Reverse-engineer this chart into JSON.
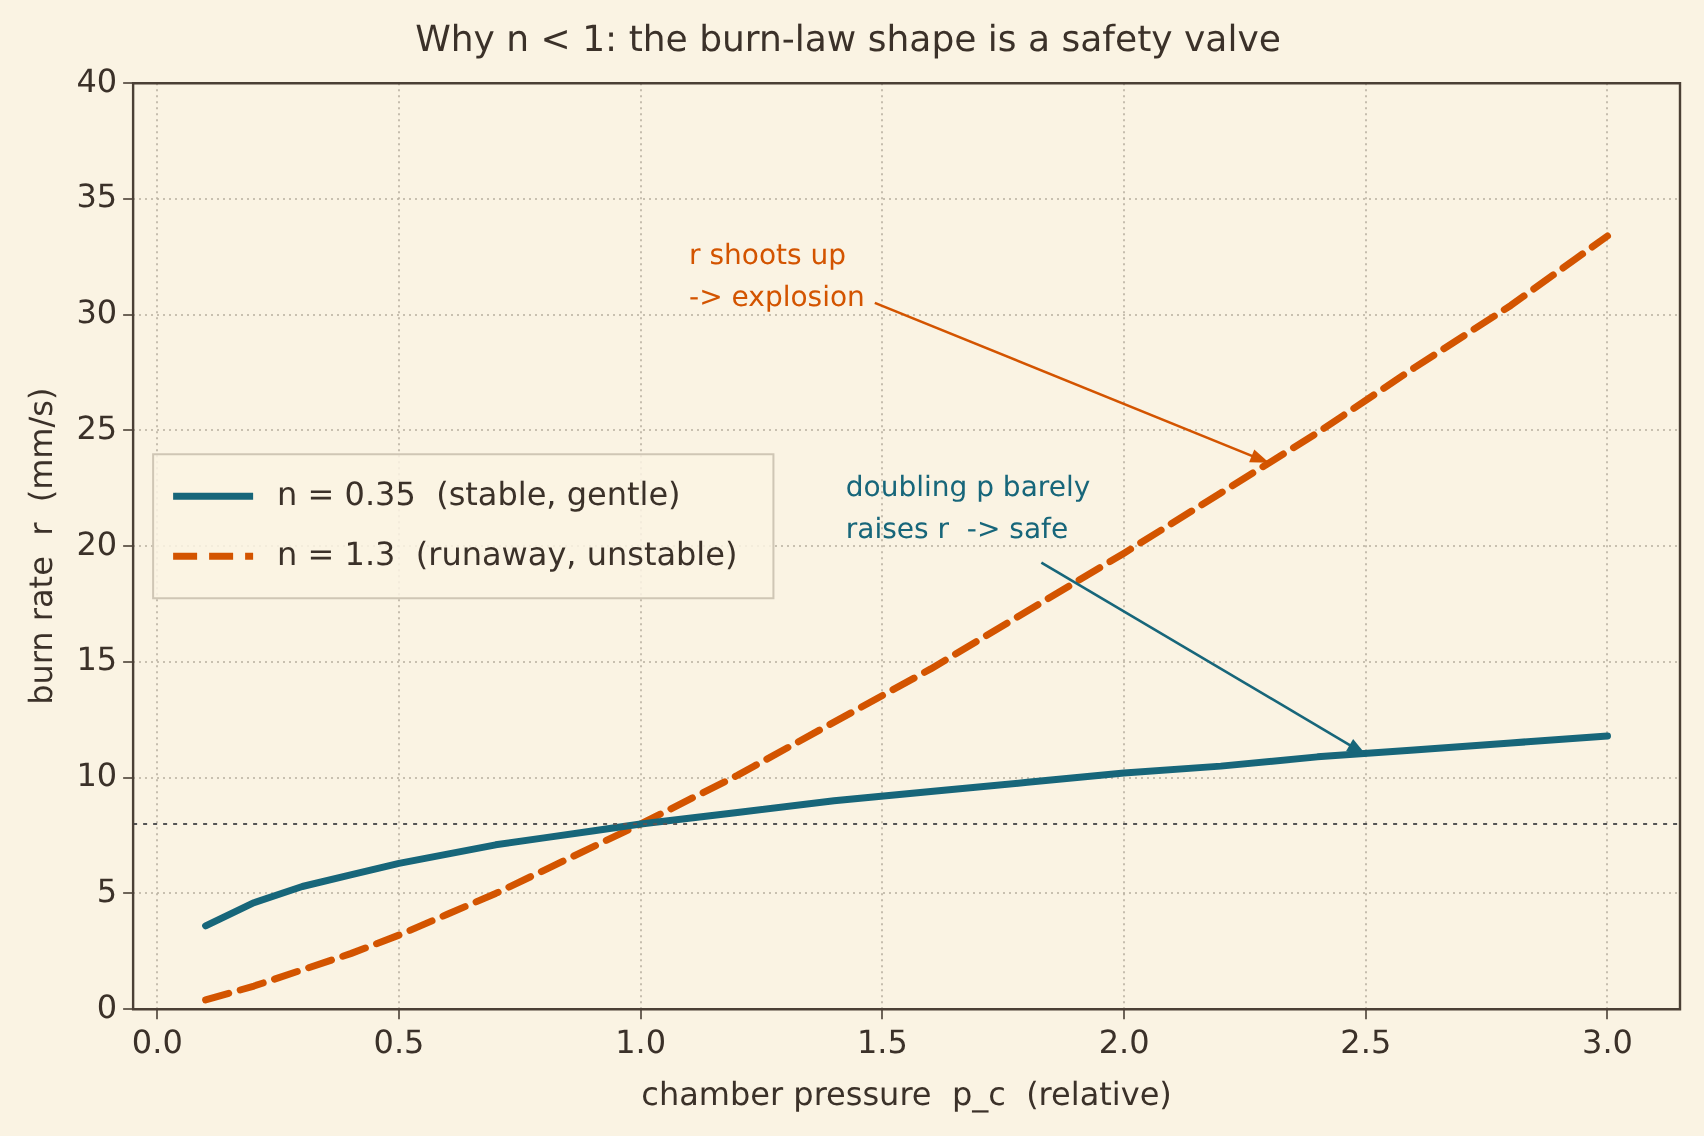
{
  "chart_data": {
    "type": "line",
    "title": "Why n < 1: the burn-law shape is a safety valve",
    "xlabel": "chamber pressure  p_c  (relative)",
    "ylabel": "burn rate  r  (mm/s)",
    "x": [
      0.1,
      0.2,
      0.3,
      0.4,
      0.5,
      0.6,
      0.7,
      0.8,
      0.9,
      1.0,
      1.2,
      1.4,
      1.6,
      1.8,
      2.0,
      2.2,
      2.4,
      2.6,
      2.8,
      3.0
    ],
    "series": [
      {
        "name": "n = 0.35  (stable, gentle)",
        "color": "#17667a",
        "line_style": "solid",
        "values": [
          3.6,
          4.6,
          5.3,
          5.8,
          6.3,
          6.7,
          7.1,
          7.4,
          7.7,
          8.0,
          8.5,
          9.0,
          9.4,
          9.8,
          10.2,
          10.5,
          10.9,
          11.2,
          11.5,
          11.8
        ]
      },
      {
        "name": "n = 1.3  (runaway, unstable)",
        "color": "#d35400",
        "line_style": "dashed",
        "values": [
          0.4,
          1.0,
          1.7,
          2.4,
          3.2,
          4.1,
          5.0,
          6.0,
          7.0,
          8.0,
          10.1,
          12.4,
          14.7,
          17.2,
          19.7,
          22.3,
          24.9,
          27.7,
          30.4,
          33.4
        ]
      }
    ],
    "xlim": [
      -0.05,
      3.15
    ],
    "xticks": [
      {
        "value": 0,
        "label": "0.0"
      },
      0.5,
      {
        "value": 1,
        "label": "1.0"
      },
      1.5,
      {
        "value": 2,
        "label": "2.0"
      },
      2.5,
      {
        "value": 3,
        "label": "3.0"
      }
    ],
    "ylim": [
      0,
      40
    ],
    "yticks": [
      0,
      5,
      10,
      15,
      20,
      25,
      30,
      35,
      40
    ],
    "grid": true,
    "legend": "left",
    "marker": "none",
    "ref_lines": [
      {
        "axis": "y",
        "value": 8,
        "color": "#555555",
        "line_style": "dotted"
      }
    ],
    "annotations": [
      {
        "text": "r shoots up\n-> explosion",
        "x": 2.3,
        "y": 23.6
      },
      {
        "text": "doubling p barely\nraises r  -> safe",
        "x": 2.5,
        "y": 11.0
      }
    ]
  }
}
